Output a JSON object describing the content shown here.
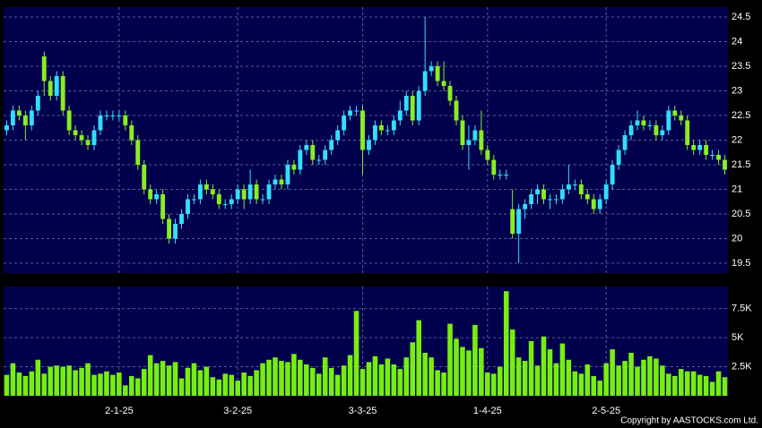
{
  "chart_data": {
    "type": "candlestick",
    "copyright": "Copyright by AASTOCKS.com Ltd.",
    "up_color": "#33ddff",
    "down_color": "#88ee22",
    "volume_color": "#77ee11",
    "ylim": [
      19.3,
      24.7
    ],
    "yticks": [
      19.5,
      20,
      20.5,
      21,
      21.5,
      22,
      22.5,
      23,
      23.5,
      24,
      24.5
    ],
    "volume_ylim": [
      0,
      9400
    ],
    "volume_yticks": [
      {
        "value": 2500,
        "label": "2.5K"
      },
      {
        "value": 5000,
        "label": "5K"
      },
      {
        "value": 7500,
        "label": "7.5K"
      }
    ],
    "grid": true,
    "categories": [
      null,
      null,
      null,
      null,
      null,
      null,
      null,
      null,
      null,
      null,
      null,
      null,
      null,
      null,
      null,
      null,
      null,
      null,
      "2-1-25",
      null,
      null,
      null,
      null,
      null,
      null,
      null,
      null,
      null,
      null,
      null,
      null,
      null,
      null,
      null,
      null,
      null,
      null,
      "3-2-25",
      null,
      null,
      null,
      null,
      null,
      null,
      null,
      null,
      null,
      null,
      null,
      null,
      null,
      null,
      null,
      null,
      null,
      null,
      null,
      "3-3-25",
      null,
      null,
      null,
      null,
      null,
      null,
      null,
      null,
      null,
      null,
      null,
      null,
      null,
      null,
      null,
      null,
      null,
      null,
      null,
      "1-4-25",
      null,
      null,
      null,
      null,
      null,
      null,
      null,
      null,
      null,
      null,
      null,
      null,
      null,
      null,
      null,
      null,
      null,
      null,
      "2-5-25",
      null,
      null,
      null,
      null,
      null,
      null,
      null,
      null,
      null,
      null,
      null,
      null,
      null,
      null,
      null,
      null,
      null,
      null,
      null
    ],
    "ohlc": [
      [
        22.2,
        22.4,
        22.1,
        22.3
      ],
      [
        22.3,
        22.7,
        22.2,
        22.6
      ],
      [
        22.6,
        22.7,
        22.4,
        22.5
      ],
      [
        22.5,
        22.6,
        22.0,
        22.3
      ],
      [
        22.3,
        22.7,
        22.2,
        22.6
      ],
      [
        22.6,
        23.0,
        22.5,
        22.9
      ],
      [
        23.7,
        23.8,
        22.9,
        23.2
      ],
      [
        23.2,
        23.3,
        22.8,
        22.9
      ],
      [
        22.9,
        23.4,
        22.8,
        23.3
      ],
      [
        23.3,
        23.4,
        22.5,
        22.6
      ],
      [
        22.6,
        22.7,
        22.1,
        22.2
      ],
      [
        22.2,
        22.3,
        22.0,
        22.1
      ],
      [
        22.1,
        22.2,
        21.9,
        22.0
      ],
      [
        22.0,
        22.1,
        21.8,
        21.9
      ],
      [
        21.9,
        22.3,
        21.8,
        22.2
      ],
      [
        22.2,
        22.6,
        22.1,
        22.5
      ],
      [
        22.5,
        22.6,
        22.4,
        22.5
      ],
      [
        22.5,
        22.6,
        22.4,
        22.5
      ],
      [
        22.5,
        22.6,
        22.4,
        22.5
      ],
      [
        22.5,
        22.6,
        22.2,
        22.3
      ],
      [
        22.3,
        22.4,
        21.9,
        22.0
      ],
      [
        22.0,
        22.1,
        21.4,
        21.5
      ],
      [
        21.5,
        21.6,
        20.9,
        21.0
      ],
      [
        21.0,
        21.1,
        20.7,
        20.8
      ],
      [
        20.8,
        21.0,
        20.7,
        20.9
      ],
      [
        20.9,
        21.0,
        20.3,
        20.4
      ],
      [
        20.4,
        20.5,
        19.9,
        20.0
      ],
      [
        20.0,
        20.4,
        19.9,
        20.3
      ],
      [
        20.3,
        20.6,
        20.2,
        20.5
      ],
      [
        20.5,
        20.9,
        20.4,
        20.8
      ],
      [
        20.8,
        20.9,
        20.7,
        20.8
      ],
      [
        20.8,
        21.2,
        20.7,
        21.1
      ],
      [
        21.1,
        21.2,
        20.9,
        21.0
      ],
      [
        21.0,
        21.1,
        20.8,
        20.9
      ],
      [
        20.9,
        21.0,
        20.6,
        20.7
      ],
      [
        20.7,
        20.8,
        20.6,
        20.7
      ],
      [
        20.7,
        20.9,
        20.6,
        20.8
      ],
      [
        20.8,
        21.1,
        20.7,
        21.0
      ],
      [
        21.0,
        21.1,
        20.6,
        20.8
      ],
      [
        20.8,
        21.4,
        20.7,
        21.1
      ],
      [
        21.1,
        21.2,
        20.7,
        20.8
      ],
      [
        20.8,
        20.9,
        20.7,
        20.8
      ],
      [
        20.8,
        21.2,
        20.7,
        21.1
      ],
      [
        21.1,
        21.3,
        21.0,
        21.2
      ],
      [
        21.2,
        21.3,
        21.0,
        21.1
      ],
      [
        21.1,
        21.6,
        21.0,
        21.5
      ],
      [
        21.5,
        21.6,
        21.3,
        21.4
      ],
      [
        21.4,
        21.9,
        21.3,
        21.8
      ],
      [
        21.8,
        22.0,
        21.7,
        21.9
      ],
      [
        21.9,
        22.0,
        21.5,
        21.6
      ],
      [
        21.6,
        21.7,
        21.5,
        21.6
      ],
      [
        21.6,
        21.9,
        21.5,
        21.8
      ],
      [
        21.8,
        22.1,
        21.7,
        22.0
      ],
      [
        22.0,
        22.3,
        21.9,
        22.2
      ],
      [
        22.2,
        22.6,
        22.1,
        22.5
      ],
      [
        22.5,
        22.7,
        22.4,
        22.6
      ],
      [
        22.6,
        22.7,
        22.5,
        22.6
      ],
      [
        22.6,
        22.7,
        21.3,
        21.8
      ],
      [
        21.8,
        22.1,
        21.7,
        22.0
      ],
      [
        22.0,
        22.4,
        21.9,
        22.3
      ],
      [
        22.3,
        22.4,
        22.1,
        22.2
      ],
      [
        22.2,
        22.3,
        22.1,
        22.2
      ],
      [
        22.2,
        22.5,
        22.1,
        22.4
      ],
      [
        22.4,
        22.8,
        22.3,
        22.6
      ],
      [
        22.6,
        23.0,
        22.5,
        22.9
      ],
      [
        22.9,
        23.0,
        22.3,
        22.4
      ],
      [
        22.4,
        23.1,
        22.3,
        23.0
      ],
      [
        23.0,
        24.5,
        22.9,
        23.4
      ],
      [
        23.4,
        23.6,
        23.3,
        23.5
      ],
      [
        23.5,
        23.6,
        23.1,
        23.2
      ],
      [
        23.2,
        23.6,
        23.0,
        23.1
      ],
      [
        23.1,
        23.2,
        22.7,
        22.8
      ],
      [
        22.8,
        22.9,
        22.3,
        22.4
      ],
      [
        22.4,
        22.5,
        21.8,
        21.9
      ],
      [
        21.9,
        22.3,
        21.4,
        22.0
      ],
      [
        22.0,
        22.3,
        21.9,
        22.2
      ],
      [
        22.2,
        22.6,
        21.7,
        21.8
      ],
      [
        21.8,
        21.9,
        21.5,
        21.6
      ],
      [
        21.6,
        21.7,
        21.2,
        21.3
      ],
      [
        21.3,
        21.4,
        21.2,
        21.3
      ],
      [
        21.3,
        21.4,
        21.2,
        21.3
      ],
      [
        20.6,
        21.0,
        20.0,
        20.1
      ],
      [
        20.1,
        20.7,
        19.5,
        20.6
      ],
      [
        20.6,
        20.8,
        20.4,
        20.7
      ],
      [
        20.7,
        21.0,
        20.6,
        20.9
      ],
      [
        20.9,
        21.1,
        20.7,
        21.0
      ],
      [
        21.0,
        21.1,
        20.7,
        20.8
      ],
      [
        20.8,
        20.9,
        20.6,
        20.8
      ],
      [
        20.8,
        20.9,
        20.7,
        20.8
      ],
      [
        20.8,
        21.1,
        20.7,
        21.0
      ],
      [
        21.0,
        21.5,
        20.9,
        21.1
      ],
      [
        21.1,
        21.2,
        21.0,
        21.1
      ],
      [
        21.1,
        21.2,
        20.8,
        20.9
      ],
      [
        20.9,
        21.0,
        20.7,
        20.8
      ],
      [
        20.8,
        20.9,
        20.5,
        20.6
      ],
      [
        20.6,
        20.9,
        20.5,
        20.8
      ],
      [
        20.8,
        21.2,
        20.7,
        21.1
      ],
      [
        21.1,
        21.6,
        21.0,
        21.5
      ],
      [
        21.5,
        21.9,
        21.4,
        21.8
      ],
      [
        21.8,
        22.2,
        21.7,
        22.1
      ],
      [
        22.1,
        22.4,
        22.0,
        22.3
      ],
      [
        22.3,
        22.6,
        22.2,
        22.4
      ],
      [
        22.4,
        22.5,
        22.2,
        22.3
      ],
      [
        22.3,
        22.4,
        22.2,
        22.3
      ],
      [
        22.3,
        22.4,
        22.0,
        22.1
      ],
      [
        22.1,
        22.3,
        22.0,
        22.2
      ],
      [
        22.2,
        22.7,
        22.1,
        22.6
      ],
      [
        22.6,
        22.7,
        22.4,
        22.5
      ],
      [
        22.5,
        22.6,
        22.3,
        22.4
      ],
      [
        22.4,
        22.5,
        21.8,
        21.9
      ],
      [
        21.9,
        22.0,
        21.7,
        21.8
      ],
      [
        21.8,
        22.0,
        21.7,
        21.9
      ],
      [
        21.9,
        22.0,
        21.6,
        21.7
      ],
      [
        21.7,
        21.8,
        21.6,
        21.7
      ],
      [
        21.7,
        21.8,
        21.5,
        21.6
      ],
      [
        21.6,
        21.7,
        21.3,
        21.4
      ]
    ],
    "volume": [
      1800,
      2800,
      2000,
      1700,
      2100,
      3100,
      1900,
      2500,
      2600,
      2500,
      2600,
      2200,
      2400,
      2800,
      1800,
      1900,
      2100,
      1800,
      2000,
      900,
      1700,
      1500,
      2300,
      3500,
      2800,
      3000,
      2600,
      2900,
      1500,
      2400,
      2800,
      2200,
      2500,
      1600,
      1400,
      1900,
      1800,
      1300,
      2000,
      1700,
      2200,
      2800,
      3100,
      3300,
      3000,
      2900,
      3600,
      3100,
      2700,
      2400,
      1900,
      3300,
      2400,
      1800,
      2600,
      3500,
      7300,
      2300,
      2900,
      3400,
      2700,
      3200,
      2700,
      2300,
      3300,
      4600,
      6500,
      3700,
      3300,
      2200,
      2000,
      6200,
      4900,
      4200,
      3900,
      6100,
      4100,
      2000,
      1900,
      2500,
      9000,
      5700,
      3300,
      3000,
      4700,
      2600,
      5100,
      4000,
      2800,
      4500,
      3100,
      2100,
      1900,
      2700,
      1700,
      1300,
      2800,
      4000,
      2600,
      3000,
      3700,
      2500,
      3100,
      3400,
      3200,
      2600,
      1900,
      1700,
      2300,
      2100,
      2100,
      1800,
      1700,
      1200,
      2100,
      1600
    ]
  }
}
